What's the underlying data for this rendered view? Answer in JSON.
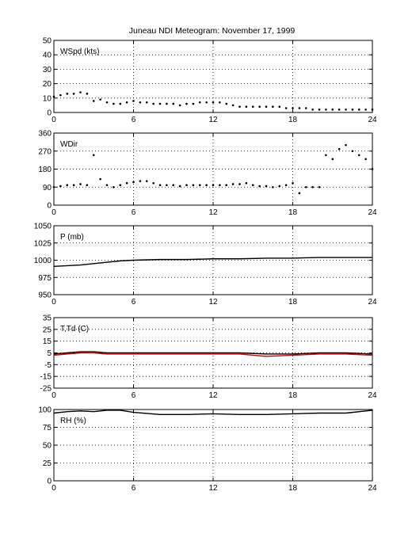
{
  "title": "Juneau NDI Meteogram:  November 17, 1999",
  "colors": {
    "axis": "#000000",
    "grid": "#000000",
    "data": "#000000",
    "dewpoint": "#cc0000"
  },
  "chart_data": [
    {
      "type": "scatter",
      "ylabel": "WSpd (kts)",
      "x_ticks": [
        "0",
        "6",
        "12",
        "18",
        "24"
      ],
      "y_ticks": [
        "0",
        "10",
        "20",
        "30",
        "40",
        "50"
      ],
      "xlim": [
        0,
        24
      ],
      "ylim": [
        0,
        50
      ],
      "grid": true,
      "series": [
        {
          "x": [
            0,
            0.5,
            1,
            1.5,
            2,
            2.5,
            3,
            3.5,
            4,
            4.5,
            5,
            5.5,
            6,
            6.5,
            7,
            7.5,
            8,
            8.5,
            9,
            9.5,
            10,
            10.5,
            11,
            11.5,
            12,
            12.5,
            13,
            13.5,
            14,
            14.5,
            15,
            15.5,
            16,
            16.5,
            17,
            17.5,
            18,
            18.5,
            19,
            19.5,
            20,
            20.5,
            21,
            21.5,
            22,
            22.5,
            23,
            23.5,
            24
          ],
          "y": [
            11,
            12,
            13,
            13,
            14,
            13,
            8,
            9,
            7,
            6,
            6,
            7,
            8,
            7,
            7,
            6,
            6,
            6,
            6,
            5,
            6,
            6,
            7,
            7,
            7,
            7,
            6,
            5,
            4,
            4,
            4,
            4,
            4,
            4,
            4,
            3,
            3,
            3,
            3,
            2,
            2,
            2,
            2,
            2,
            2,
            2,
            2,
            2,
            2
          ]
        }
      ]
    },
    {
      "type": "scatter",
      "ylabel": "WDir",
      "x_ticks": [
        "0",
        "6",
        "12",
        "18",
        "24"
      ],
      "y_ticks": [
        "0",
        "90",
        "180",
        "270",
        "360"
      ],
      "xlim": [
        0,
        24
      ],
      "ylim": [
        0,
        360
      ],
      "grid": true,
      "series": [
        {
          "x": [
            0,
            0.5,
            1,
            1.5,
            2,
            2.5,
            3,
            3.5,
            4,
            4.5,
            5,
            5.5,
            6,
            6.5,
            7,
            7.5,
            8,
            8.5,
            9,
            9.5,
            10,
            10.5,
            11,
            11.5,
            12,
            12.5,
            13,
            13.5,
            14,
            14.5,
            15,
            15.5,
            16,
            16.5,
            17,
            17.5,
            18,
            18.5,
            19,
            19.5,
            20,
            20.5,
            21,
            21.5,
            22,
            22.5,
            23,
            23.5,
            24
          ],
          "y": [
            90,
            95,
            100,
            100,
            105,
            100,
            250,
            130,
            100,
            90,
            100,
            110,
            115,
            120,
            120,
            110,
            100,
            100,
            100,
            95,
            100,
            100,
            100,
            100,
            100,
            100,
            100,
            105,
            105,
            110,
            100,
            95,
            95,
            90,
            95,
            100,
            110,
            60,
            90,
            90,
            90,
            250,
            230,
            280,
            300,
            270,
            250,
            230,
            180
          ]
        }
      ]
    },
    {
      "type": "line",
      "ylabel": "P (mb)",
      "x_ticks": [
        "0",
        "6",
        "12",
        "18",
        "24"
      ],
      "y_ticks": [
        "950",
        "975",
        "1000",
        "1025",
        "1050"
      ],
      "xlim": [
        0,
        24
      ],
      "ylim": [
        950,
        1050
      ],
      "grid": true,
      "series": [
        {
          "x": [
            0,
            1,
            2,
            3,
            4,
            5,
            6,
            8,
            10,
            12,
            14,
            16,
            18,
            20,
            22,
            24
          ],
          "y": [
            991,
            992,
            993,
            995,
            997,
            999,
            1000,
            1001,
            1001,
            1002,
            1002,
            1003,
            1003,
            1004,
            1004,
            1004
          ]
        }
      ]
    },
    {
      "type": "line",
      "ylabel": "T,Td (C)",
      "x_ticks": [
        "0",
        "6",
        "12",
        "18",
        "24"
      ],
      "y_ticks": [
        "-25",
        "-15",
        "-5",
        "5",
        "15",
        "25",
        "35"
      ],
      "xlim": [
        0,
        24
      ],
      "ylim": [
        -25,
        35
      ],
      "grid": true,
      "series": [
        {
          "x": [
            0,
            1,
            2,
            3,
            4,
            5,
            6,
            8,
            10,
            12,
            14,
            16,
            18,
            20,
            22,
            24
          ],
          "y": [
            4,
            5,
            6,
            6,
            5,
            5,
            5,
            5,
            5,
            5,
            5,
            4,
            4,
            5,
            5,
            4
          ]
        },
        {
          "x": [
            0,
            1,
            2,
            3,
            4,
            5,
            6,
            8,
            10,
            12,
            14,
            16,
            18,
            20,
            22,
            24
          ],
          "y": [
            3,
            4,
            5,
            5,
            4,
            4,
            4,
            4,
            4,
            4,
            4,
            2,
            3,
            4,
            4,
            3
          ]
        }
      ]
    },
    {
      "type": "line",
      "ylabel": "RH (%)",
      "x_ticks": [
        "0",
        "6",
        "12",
        "18",
        "24"
      ],
      "y_ticks": [
        "0",
        "25",
        "50",
        "75",
        "100"
      ],
      "xlim": [
        0,
        24
      ],
      "ylim": [
        0,
        100
      ],
      "grid": true,
      "series": [
        {
          "x": [
            0,
            1,
            2,
            3,
            4,
            5,
            6,
            8,
            10,
            12,
            14,
            16,
            18,
            20,
            22,
            24
          ],
          "y": [
            95,
            97,
            98,
            97,
            99,
            99,
            96,
            93,
            93,
            94,
            93,
            93,
            94,
            95,
            95,
            99
          ]
        }
      ]
    }
  ]
}
